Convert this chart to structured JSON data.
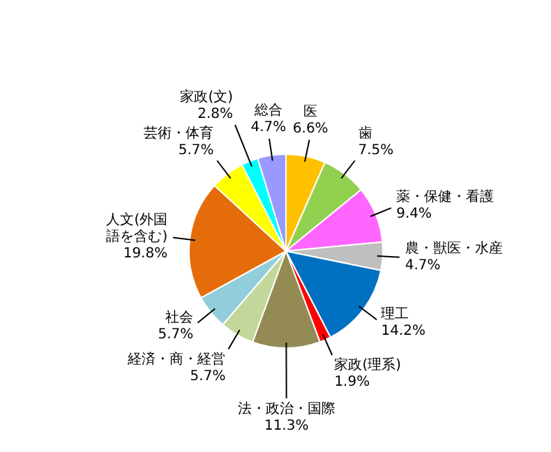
{
  "chart_data": {
    "type": "pie",
    "categories": [
      "医",
      "歯",
      "薬・保健・看護",
      "農・獣医・水産",
      "理工",
      "家政(理系)",
      "法・政治・国際",
      "経済・商・経営",
      "社会",
      "人文(外国語を含む)",
      "芸術・体育",
      "家政(文)",
      "総合"
    ],
    "values": [
      6.6,
      7.5,
      9.4,
      4.7,
      14.2,
      1.9,
      11.3,
      5.7,
      5.7,
      19.8,
      5.7,
      2.8,
      4.7
    ],
    "value_labels": [
      "6.6%",
      "7.5%",
      "9.4%",
      "4.7%",
      "14.2%",
      "1.9%",
      "11.3%",
      "5.7%",
      "5.7%",
      "19.8%",
      "5.7%",
      "2.8%",
      "4.7%"
    ],
    "colors": [
      "#ffc000",
      "#92d050",
      "#ff66ff",
      "#bfbfbf",
      "#0070c0",
      "#ff0000",
      "#948a54",
      "#c4d79b",
      "#92cddc",
      "#e46c0a",
      "#ffff00",
      "#00ffff",
      "#9999ff"
    ],
    "legend": false
  }
}
